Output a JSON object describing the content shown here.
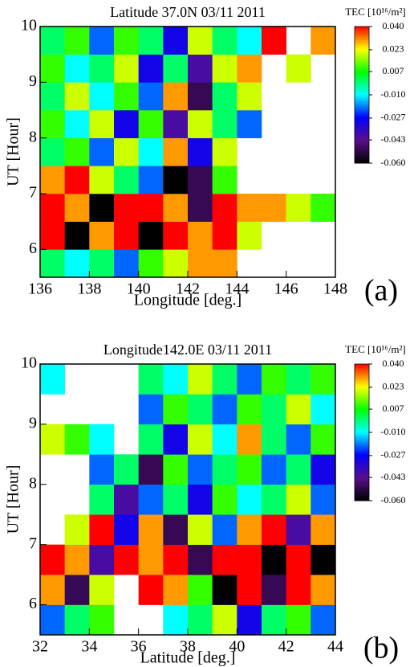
{
  "chart_data": [
    {
      "type": "heatmap",
      "title": "Latitude 37.0N  03/11 2011",
      "xlabel": "Longitude [deg.]",
      "ylabel": "UT [Hour]",
      "panel_label": "(a)",
      "xlim": [
        136,
        148
      ],
      "xticks": [
        136,
        138,
        140,
        142,
        144,
        146,
        148
      ],
      "ylim": [
        5.5,
        10
      ],
      "yticks": [
        6,
        7,
        8,
        9,
        10
      ],
      "xbins": [
        136,
        137,
        138,
        139,
        140,
        141,
        142,
        143,
        144,
        145,
        146,
        147,
        148
      ],
      "ybins": [
        5.5,
        6,
        6.5,
        7,
        7.5,
        8,
        8.5,
        9,
        9.5,
        10
      ],
      "z": [
        [
          0.0,
          -0.01,
          0.0,
          -0.02,
          0.01,
          0.02,
          0.03,
          0.03,
          null,
          null,
          null,
          null
        ],
        [
          0.04,
          -0.06,
          0.03,
          0.04,
          -0.06,
          0.04,
          0.03,
          0.04,
          0.02,
          null,
          null,
          null
        ],
        [
          0.04,
          0.03,
          -0.06,
          0.04,
          0.04,
          0.03,
          -0.05,
          0.04,
          0.03,
          0.03,
          0.02,
          0.01
        ],
        [
          0.03,
          0.04,
          0.02,
          0.0,
          -0.02,
          -0.06,
          -0.05,
          0.01,
          null,
          null,
          null,
          null
        ],
        [
          0.0,
          0.01,
          -0.02,
          0.02,
          -0.01,
          0.03,
          -0.03,
          0.02,
          null,
          null,
          null,
          null
        ],
        [
          0.01,
          -0.01,
          0.02,
          -0.03,
          0.01,
          -0.04,
          0.02,
          0.0,
          -0.02,
          null,
          null,
          null
        ],
        [
          0.0,
          0.02,
          -0.01,
          0.01,
          -0.02,
          0.03,
          -0.05,
          0.0,
          0.02,
          null,
          null,
          null
        ],
        [
          0.01,
          -0.01,
          0.0,
          0.02,
          -0.03,
          0.0,
          -0.04,
          0.02,
          0.03,
          null,
          0.02,
          null
        ],
        [
          0.0,
          0.01,
          -0.02,
          0.01,
          0.0,
          -0.03,
          0.02,
          0.0,
          -0.01,
          0.04,
          null,
          0.03
        ]
      ],
      "colorbar": {
        "label": "TEC [10¹⁶/m²]",
        "lim": [
          -0.06,
          0.04
        ],
        "ticks": [
          {
            "value": 0.04,
            "label": "0.040"
          },
          {
            "value": 0.023,
            "label": "0.023"
          },
          {
            "value": 0.007,
            "label": "0.007"
          },
          {
            "value": -0.01,
            "label": "-0.010"
          },
          {
            "value": -0.027,
            "label": "-0.027"
          },
          {
            "value": -0.043,
            "label": "-0.043"
          },
          {
            "value": -0.06,
            "label": "-0.060"
          }
        ],
        "colormap": [
          "#000000",
          "#5a0f8c",
          "#0000ff",
          "#00ffff",
          "#00ff00",
          "#ffff00",
          "#ff0000"
        ]
      }
    },
    {
      "type": "heatmap",
      "title": "Longitude142.0E  03/11 2011",
      "xlabel": "Latitude [deg.]",
      "ylabel": "UT [Hour]",
      "panel_label": "(b)",
      "xlim": [
        32,
        44
      ],
      "xticks": [
        32,
        34,
        36,
        38,
        40,
        42,
        44
      ],
      "ylim": [
        5.5,
        10
      ],
      "yticks": [
        6,
        7,
        8,
        9,
        10
      ],
      "xbins": [
        32,
        33,
        34,
        35,
        36,
        37,
        38,
        39,
        40,
        41,
        42,
        43,
        44
      ],
      "ybins": [
        5.5,
        6,
        6.5,
        7,
        7.5,
        8,
        8.5,
        9,
        9.5,
        10
      ],
      "z": [
        [
          -0.02,
          0.0,
          0.01,
          null,
          null,
          -0.01,
          0.0,
          0.02,
          -0.03,
          0.0,
          0.01,
          -0.02
        ],
        [
          0.03,
          -0.05,
          0.02,
          null,
          0.04,
          0.03,
          0.01,
          -0.06,
          0.04,
          -0.05,
          0.04,
          0.03
        ],
        [
          0.04,
          0.03,
          -0.04,
          0.04,
          0.03,
          0.04,
          -0.05,
          0.04,
          0.04,
          -0.06,
          0.04,
          -0.06
        ],
        [
          null,
          0.02,
          0.04,
          -0.03,
          0.03,
          -0.05,
          0.02,
          -0.02,
          0.03,
          0.04,
          -0.04,
          0.03
        ],
        [
          null,
          null,
          0.0,
          -0.04,
          -0.02,
          0.0,
          -0.03,
          0.01,
          -0.01,
          0.0,
          0.02,
          -0.02
        ],
        [
          null,
          null,
          -0.02,
          0.0,
          -0.05,
          0.01,
          -0.02,
          0.0,
          0.01,
          -0.02,
          0.0,
          -0.03
        ],
        [
          0.02,
          0.01,
          -0.01,
          null,
          0.0,
          -0.03,
          0.02,
          -0.01,
          0.03,
          0.0,
          -0.02,
          0.01
        ],
        [
          null,
          null,
          null,
          null,
          -0.02,
          0.01,
          0.0,
          -0.02,
          0.01,
          0.0,
          0.02,
          -0.01
        ],
        [
          -0.01,
          null,
          null,
          null,
          0.0,
          -0.01,
          0.02,
          0.0,
          -0.02,
          0.01,
          0.0,
          0.01
        ]
      ],
      "colorbar": {
        "label": "TEC [10¹⁶/m²]",
        "lim": [
          -0.06,
          0.04
        ],
        "ticks": [
          {
            "value": 0.04,
            "label": "0.040"
          },
          {
            "value": 0.023,
            "label": "0.023"
          },
          {
            "value": 0.007,
            "label": "0.007"
          },
          {
            "value": -0.01,
            "label": "-0.010"
          },
          {
            "value": -0.027,
            "label": "-0.027"
          },
          {
            "value": -0.043,
            "label": "-0.043"
          },
          {
            "value": -0.06,
            "label": "-0.060"
          }
        ],
        "colormap": [
          "#000000",
          "#5a0f8c",
          "#0000ff",
          "#00ffff",
          "#00ff00",
          "#ffff00",
          "#ff0000"
        ]
      }
    }
  ]
}
